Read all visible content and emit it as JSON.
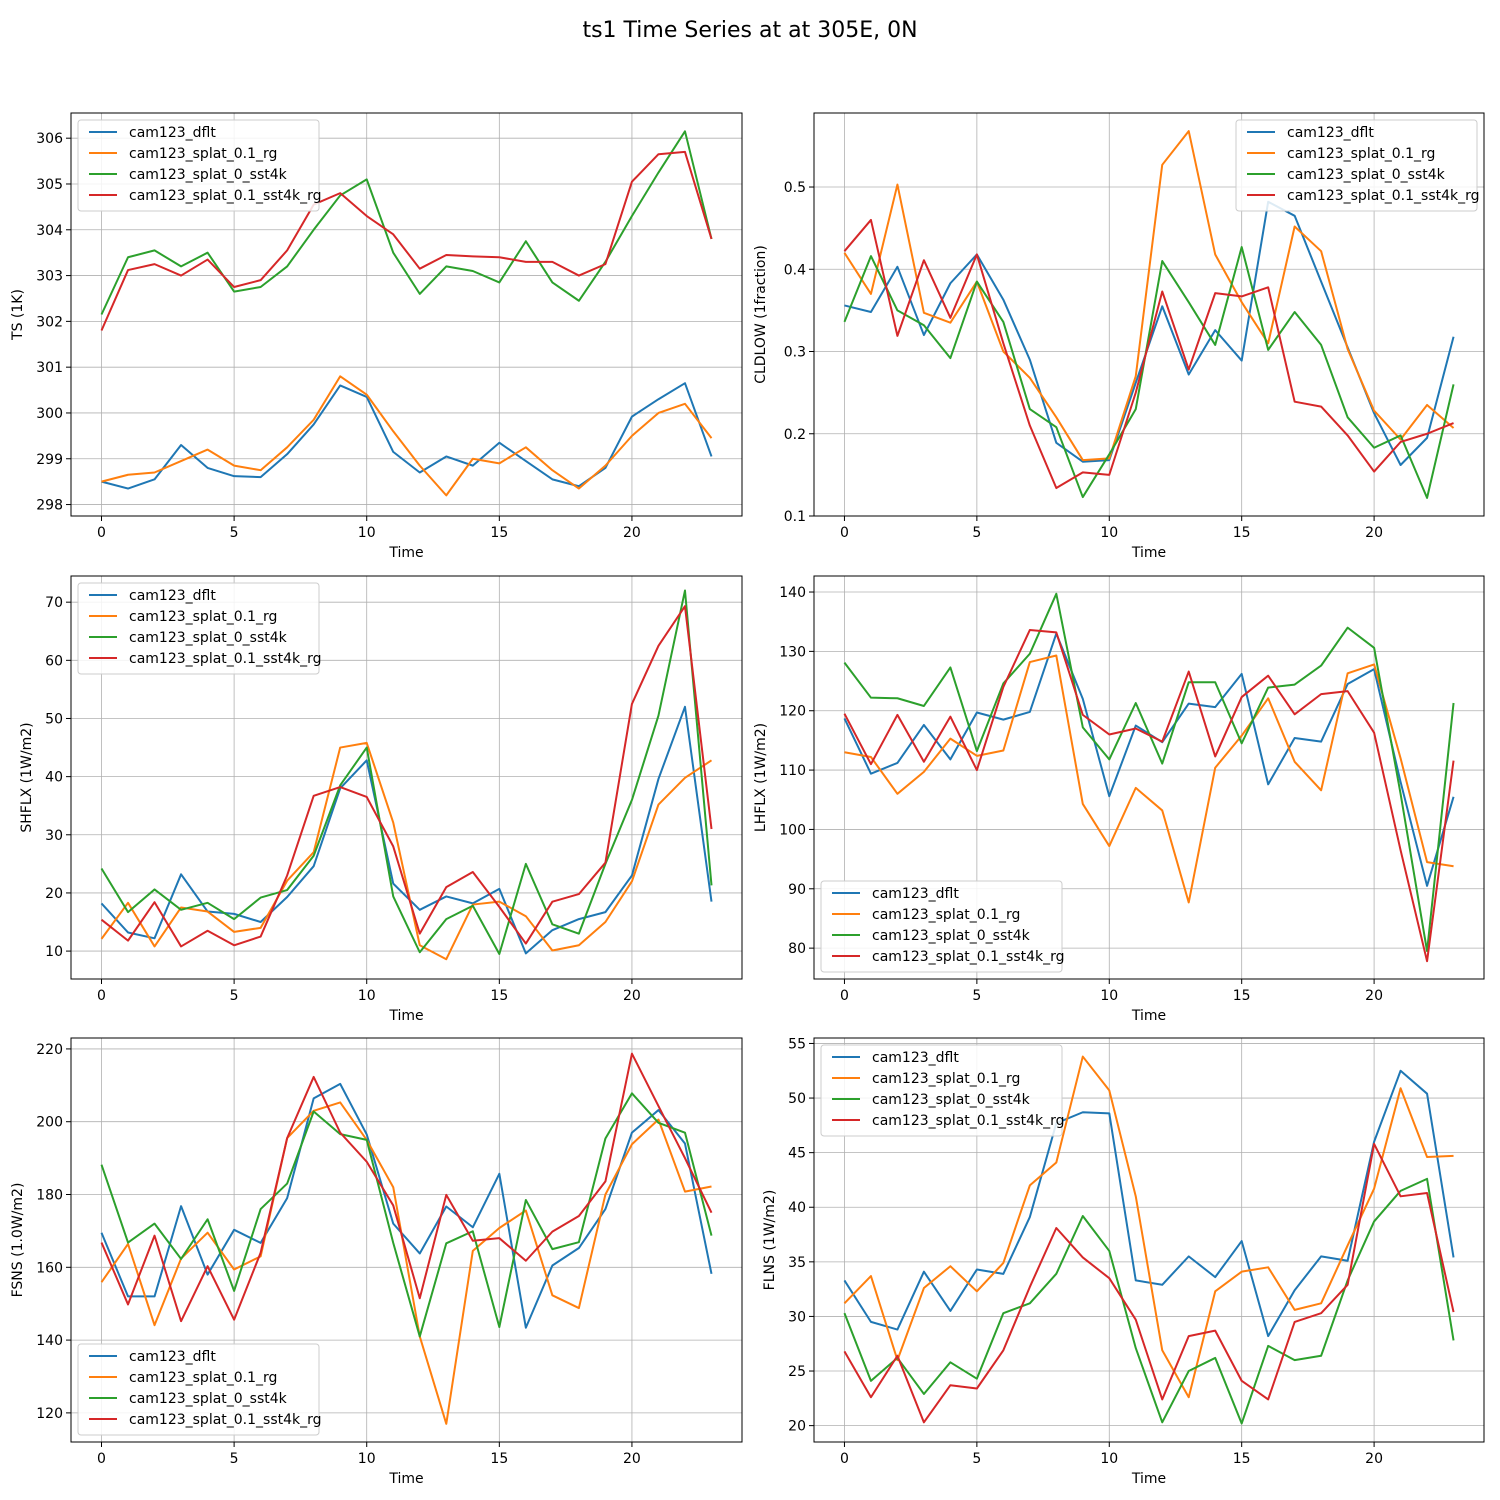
{
  "figure": {
    "title": "ts1 Time Series at at 305E, 0N"
  },
  "colors": {
    "cam123_dflt": "#1f77b4",
    "cam123_splat_0.1_rg": "#ff7f0e",
    "cam123_splat_0_sst4k": "#2ca02c",
    "cam123_splat_0.1_sst4k_rg": "#d62728"
  },
  "chart_data": [
    {
      "type": "line",
      "title": "",
      "xlabel": "Time",
      "ylabel": "TS (1K)",
      "xlim": [
        -1.15,
        24.15
      ],
      "ylim": [
        297.75,
        306.55
      ],
      "xticks": [
        0,
        5,
        10,
        15,
        20
      ],
      "yticks": [
        298,
        299,
        300,
        301,
        302,
        303,
        304,
        305,
        306
      ],
      "legend_loc": "upper-left",
      "x": [
        0,
        1,
        2,
        3,
        4,
        5,
        6,
        7,
        8,
        9,
        10,
        11,
        12,
        13,
        14,
        15,
        16,
        17,
        18,
        19,
        20,
        21,
        22,
        23
      ],
      "series": [
        {
          "name": "cam123_dflt",
          "values": [
            298.5,
            298.35,
            298.55,
            299.3,
            298.8,
            298.62,
            298.6,
            299.1,
            299.75,
            300.6,
            300.35,
            299.15,
            298.7,
            299.05,
            298.85,
            299.35,
            298.95,
            298.55,
            298.4,
            298.8,
            299.92,
            300.3,
            300.65,
            299.05
          ]
        },
        {
          "name": "cam123_splat_0.1_rg",
          "values": [
            298.5,
            298.65,
            298.7,
            298.95,
            299.2,
            298.85,
            298.75,
            299.25,
            299.85,
            300.8,
            300.4,
            299.6,
            298.85,
            298.2,
            299.0,
            298.9,
            299.25,
            298.75,
            298.35,
            298.85,
            299.5,
            300.0,
            300.2,
            299.45
          ]
        },
        {
          "name": "cam123_splat_0_sst4k",
          "values": [
            302.15,
            303.4,
            303.55,
            303.2,
            303.5,
            302.65,
            302.75,
            303.2,
            304.0,
            304.75,
            305.1,
            303.5,
            302.6,
            303.2,
            303.1,
            302.85,
            303.75,
            302.85,
            302.45,
            303.3,
            304.3,
            305.25,
            306.15,
            303.8
          ]
        },
        {
          "name": "cam123_splat_0.1_sst4k_rg",
          "values": [
            301.8,
            303.12,
            303.25,
            303.0,
            303.35,
            302.75,
            302.9,
            303.55,
            304.55,
            304.8,
            304.3,
            303.9,
            303.15,
            303.45,
            303.42,
            303.4,
            303.3,
            303.3,
            303.0,
            303.25,
            305.05,
            305.65,
            305.7,
            303.8
          ]
        }
      ]
    },
    {
      "type": "line",
      "title": "",
      "xlabel": "Time",
      "ylabel": "CLDLOW (1fraction)",
      "xlim": [
        -1.15,
        24.15
      ],
      "ylim": [
        0.1,
        0.59
      ],
      "xticks": [
        0,
        5,
        10,
        15,
        20
      ],
      "yticks": [
        0.1,
        0.2,
        0.3,
        0.4,
        0.5
      ],
      "legend_loc": "upper-right",
      "x": [
        0,
        1,
        2,
        3,
        4,
        5,
        6,
        7,
        8,
        9,
        10,
        11,
        12,
        13,
        14,
        15,
        16,
        17,
        18,
        19,
        20,
        21,
        22,
        23
      ],
      "series": [
        {
          "name": "cam123_dflt",
          "values": [
            0.356,
            0.348,
            0.403,
            0.32,
            0.383,
            0.418,
            0.363,
            0.29,
            0.189,
            0.166,
            0.168,
            0.262,
            0.355,
            0.272,
            0.326,
            0.289,
            0.482,
            0.465,
            0.385,
            0.305,
            0.225,
            0.162,
            0.195,
            0.318
          ]
        },
        {
          "name": "cam123_splat_0.1_rg",
          "values": [
            0.42,
            0.37,
            0.503,
            0.347,
            0.335,
            0.385,
            0.3,
            0.268,
            0.22,
            0.168,
            0.17,
            0.27,
            0.527,
            0.568,
            0.418,
            0.36,
            0.31,
            0.452,
            0.422,
            0.303,
            0.228,
            0.193,
            0.235,
            0.207
          ]
        },
        {
          "name": "cam123_splat_0_sst4k",
          "values": [
            0.336,
            0.416,
            0.35,
            0.332,
            0.292,
            0.385,
            0.336,
            0.23,
            0.208,
            0.123,
            0.175,
            0.23,
            0.41,
            0.36,
            0.308,
            0.427,
            0.302,
            0.348,
            0.308,
            0.22,
            0.183,
            0.198,
            0.122,
            0.26
          ]
        },
        {
          "name": "cam123_splat_0.1_sst4k_rg",
          "values": [
            0.422,
            0.46,
            0.319,
            0.411,
            0.341,
            0.418,
            0.31,
            0.21,
            0.134,
            0.153,
            0.15,
            0.25,
            0.373,
            0.278,
            0.371,
            0.367,
            0.378,
            0.239,
            0.233,
            0.198,
            0.154,
            0.19,
            0.2,
            0.213
          ]
        }
      ]
    },
    {
      "type": "line",
      "title": "",
      "xlabel": "Time",
      "ylabel": "SHFLX (1W/m2)",
      "xlim": [
        -1.15,
        24.15
      ],
      "ylim": [
        5.2,
        74.5
      ],
      "xticks": [
        0,
        5,
        10,
        15,
        20
      ],
      "yticks": [
        10,
        20,
        30,
        40,
        50,
        60,
        70
      ],
      "legend_loc": "upper-left",
      "x": [
        0,
        1,
        2,
        3,
        4,
        5,
        6,
        7,
        8,
        9,
        10,
        11,
        12,
        13,
        14,
        15,
        16,
        17,
        18,
        19,
        20,
        21,
        22,
        23
      ],
      "series": [
        {
          "name": "cam123_dflt",
          "values": [
            18.2,
            13.2,
            12.2,
            23.2,
            16.8,
            16.4,
            15.0,
            19.3,
            24.6,
            38.0,
            42.8,
            21.6,
            17.1,
            19.4,
            18.2,
            20.7,
            9.6,
            13.6,
            15.5,
            16.7,
            23.0,
            39.6,
            52.0,
            18.5
          ]
        },
        {
          "name": "cam123_splat_0.1_rg",
          "values": [
            12.1,
            18.3,
            10.8,
            17.5,
            16.8,
            13.3,
            14.0,
            22.1,
            27.0,
            45.0,
            45.8,
            32.1,
            11.0,
            8.6,
            18.0,
            18.5,
            16.0,
            10.1,
            11.0,
            15.0,
            22.0,
            35.2,
            39.8,
            42.8
          ]
        },
        {
          "name": "cam123_splat_0_sst4k",
          "values": [
            24.2,
            16.7,
            20.6,
            17.1,
            18.3,
            15.5,
            19.2,
            20.5,
            26.4,
            38.5,
            45.0,
            19.4,
            9.8,
            15.5,
            17.8,
            9.5,
            25.0,
            14.6,
            13.0,
            25.0,
            36.0,
            50.5,
            72.0,
            21.3
          ]
        },
        {
          "name": "cam123_splat_0.1_sst4k_rg",
          "values": [
            15.4,
            11.8,
            18.4,
            10.8,
            13.5,
            11.0,
            12.5,
            23.0,
            36.7,
            38.2,
            36.5,
            28.0,
            13.0,
            21.0,
            23.6,
            17.6,
            11.3,
            18.5,
            19.8,
            25.2,
            52.5,
            62.5,
            69.3,
            31.0
          ]
        }
      ]
    },
    {
      "type": "line",
      "title": "",
      "xlabel": "Time",
      "ylabel": "LHFLX (1W/m2)",
      "xlim": [
        -1.15,
        24.15
      ],
      "ylim": [
        74.8,
        142.7
      ],
      "xticks": [
        0,
        5,
        10,
        15,
        20
      ],
      "yticks": [
        80,
        90,
        100,
        110,
        120,
        130,
        140
      ],
      "legend_loc": "lower-left",
      "x": [
        0,
        1,
        2,
        3,
        4,
        5,
        6,
        7,
        8,
        9,
        10,
        11,
        12,
        13,
        14,
        15,
        16,
        17,
        18,
        19,
        20,
        21,
        22,
        23
      ],
      "series": [
        {
          "name": "cam123_dflt",
          "values": [
            118.7,
            109.4,
            111.2,
            117.6,
            111.8,
            119.7,
            118.5,
            119.8,
            133.0,
            122.0,
            105.6,
            117.5,
            114.7,
            121.2,
            120.6,
            126.2,
            107.6,
            115.4,
            114.8,
            124.5,
            127.0,
            108.0,
            90.5,
            105.5
          ]
        },
        {
          "name": "cam123_splat_0.1_rg",
          "values": [
            113.0,
            112.2,
            106.0,
            109.7,
            115.3,
            112.4,
            113.3,
            128.2,
            129.3,
            104.3,
            97.2,
            107.0,
            103.2,
            87.7,
            110.4,
            115.8,
            122.1,
            111.4,
            106.6,
            126.3,
            127.8,
            112.0,
            94.5,
            93.8
          ]
        },
        {
          "name": "cam123_splat_0_sst4k",
          "values": [
            128.1,
            122.2,
            122.1,
            120.8,
            127.3,
            113.2,
            124.6,
            129.6,
            139.7,
            117.2,
            111.8,
            121.3,
            111.1,
            124.8,
            124.8,
            114.5,
            123.9,
            124.4,
            127.6,
            134.0,
            130.6,
            106.0,
            79.5,
            121.3
          ]
        },
        {
          "name": "cam123_splat_0.1_sst4k_rg",
          "values": [
            119.5,
            111.0,
            119.3,
            111.4,
            119.0,
            110.0,
            124.0,
            133.6,
            133.2,
            119.3,
            116.0,
            117.0,
            114.8,
            126.6,
            112.3,
            122.3,
            125.9,
            119.4,
            122.8,
            123.3,
            116.3,
            96.5,
            77.8,
            111.6
          ]
        }
      ]
    },
    {
      "type": "line",
      "title": "",
      "xlabel": "Time",
      "ylabel": "FSNS (1.0W/m2)",
      "xlim": [
        -1.15,
        24.15
      ],
      "ylim": [
        112.0,
        223.0
      ],
      "xticks": [
        0,
        5,
        10,
        15,
        20
      ],
      "yticks": [
        120,
        140,
        160,
        180,
        200,
        220
      ],
      "legend_loc": "lower-left",
      "x": [
        0,
        1,
        2,
        3,
        4,
        5,
        6,
        7,
        8,
        9,
        10,
        11,
        12,
        13,
        14,
        15,
        16,
        17,
        18,
        19,
        20,
        21,
        22,
        23
      ],
      "series": [
        {
          "name": "cam123_dflt",
          "values": [
            169.5,
            152.0,
            152.0,
            176.8,
            158.0,
            170.3,
            166.7,
            179.0,
            206.4,
            210.4,
            196.5,
            172.0,
            163.8,
            176.7,
            171.0,
            185.7,
            143.4,
            160.5,
            165.3,
            176.0,
            197.0,
            203.2,
            194.0,
            158.2
          ]
        },
        {
          "name": "cam123_splat_0.1_rg",
          "values": [
            155.9,
            166.4,
            144.1,
            162.4,
            169.5,
            159.4,
            163.0,
            195.5,
            203.0,
            205.3,
            195.0,
            182.0,
            141.0,
            117.0,
            164.5,
            170.8,
            175.6,
            152.3,
            148.8,
            180.0,
            193.8,
            200.6,
            180.8,
            182.2
          ]
        },
        {
          "name": "cam123_splat_0_sst4k",
          "values": [
            188.2,
            166.8,
            172.0,
            162.3,
            173.2,
            153.5,
            176.0,
            183.0,
            202.8,
            196.6,
            195.0,
            166.7,
            141.0,
            166.6,
            169.9,
            143.6,
            178.5,
            165.0,
            166.9,
            195.4,
            207.8,
            199.7,
            197.0,
            168.7
          ]
        },
        {
          "name": "cam123_splat_0.1_sst4k_rg",
          "values": [
            166.8,
            149.8,
            168.7,
            145.2,
            160.3,
            145.6,
            164.0,
            195.5,
            212.3,
            197.0,
            189.0,
            177.0,
            151.5,
            179.9,
            167.3,
            168.0,
            161.8,
            169.8,
            174.1,
            183.6,
            218.7,
            204.3,
            190.0,
            175.0
          ]
        }
      ]
    },
    {
      "type": "line",
      "title": "",
      "xlabel": "Time",
      "ylabel": "FLNS (1W/m2)",
      "xlim": [
        -1.15,
        24.15
      ],
      "ylim": [
        18.5,
        55.5
      ],
      "xticks": [
        0,
        5,
        10,
        15,
        20
      ],
      "yticks": [
        20,
        25,
        30,
        35,
        40,
        45,
        50,
        55
      ],
      "legend_loc": "upper-left",
      "x": [
        0,
        1,
        2,
        3,
        4,
        5,
        6,
        7,
        8,
        9,
        10,
        11,
        12,
        13,
        14,
        15,
        16,
        17,
        18,
        19,
        20,
        21,
        22,
        23
      ],
      "series": [
        {
          "name": "cam123_dflt",
          "values": [
            33.3,
            29.5,
            28.8,
            34.1,
            30.5,
            34.3,
            33.9,
            39.1,
            47.7,
            48.7,
            48.6,
            33.3,
            32.9,
            35.5,
            33.6,
            36.9,
            28.2,
            32.4,
            35.5,
            35.1,
            46.0,
            52.5,
            50.4,
            35.4
          ]
        },
        {
          "name": "cam123_splat_0.1_rg",
          "values": [
            31.2,
            33.7,
            26.0,
            32.6,
            34.6,
            32.3,
            34.9,
            42.0,
            44.1,
            53.8,
            50.7,
            41.0,
            26.9,
            22.6,
            32.3,
            34.1,
            34.5,
            30.6,
            31.2,
            36.5,
            41.7,
            50.9,
            44.6,
            44.7
          ]
        },
        {
          "name": "cam123_splat_0_sst4k",
          "values": [
            30.3,
            24.1,
            26.2,
            22.9,
            25.8,
            24.3,
            30.3,
            31.2,
            33.9,
            39.2,
            36.0,
            27.1,
            20.3,
            25.0,
            26.2,
            20.2,
            27.3,
            26.0,
            26.4,
            33.3,
            38.7,
            41.5,
            42.6,
            27.8
          ]
        },
        {
          "name": "cam123_splat_0.1_sst4k_rg",
          "values": [
            26.8,
            22.6,
            26.4,
            20.3,
            23.7,
            23.4,
            26.9,
            32.7,
            38.1,
            35.4,
            33.5,
            29.7,
            22.4,
            28.2,
            28.7,
            24.1,
            22.4,
            29.5,
            30.3,
            32.9,
            45.8,
            41.0,
            41.3,
            30.4
          ]
        }
      ]
    }
  ]
}
